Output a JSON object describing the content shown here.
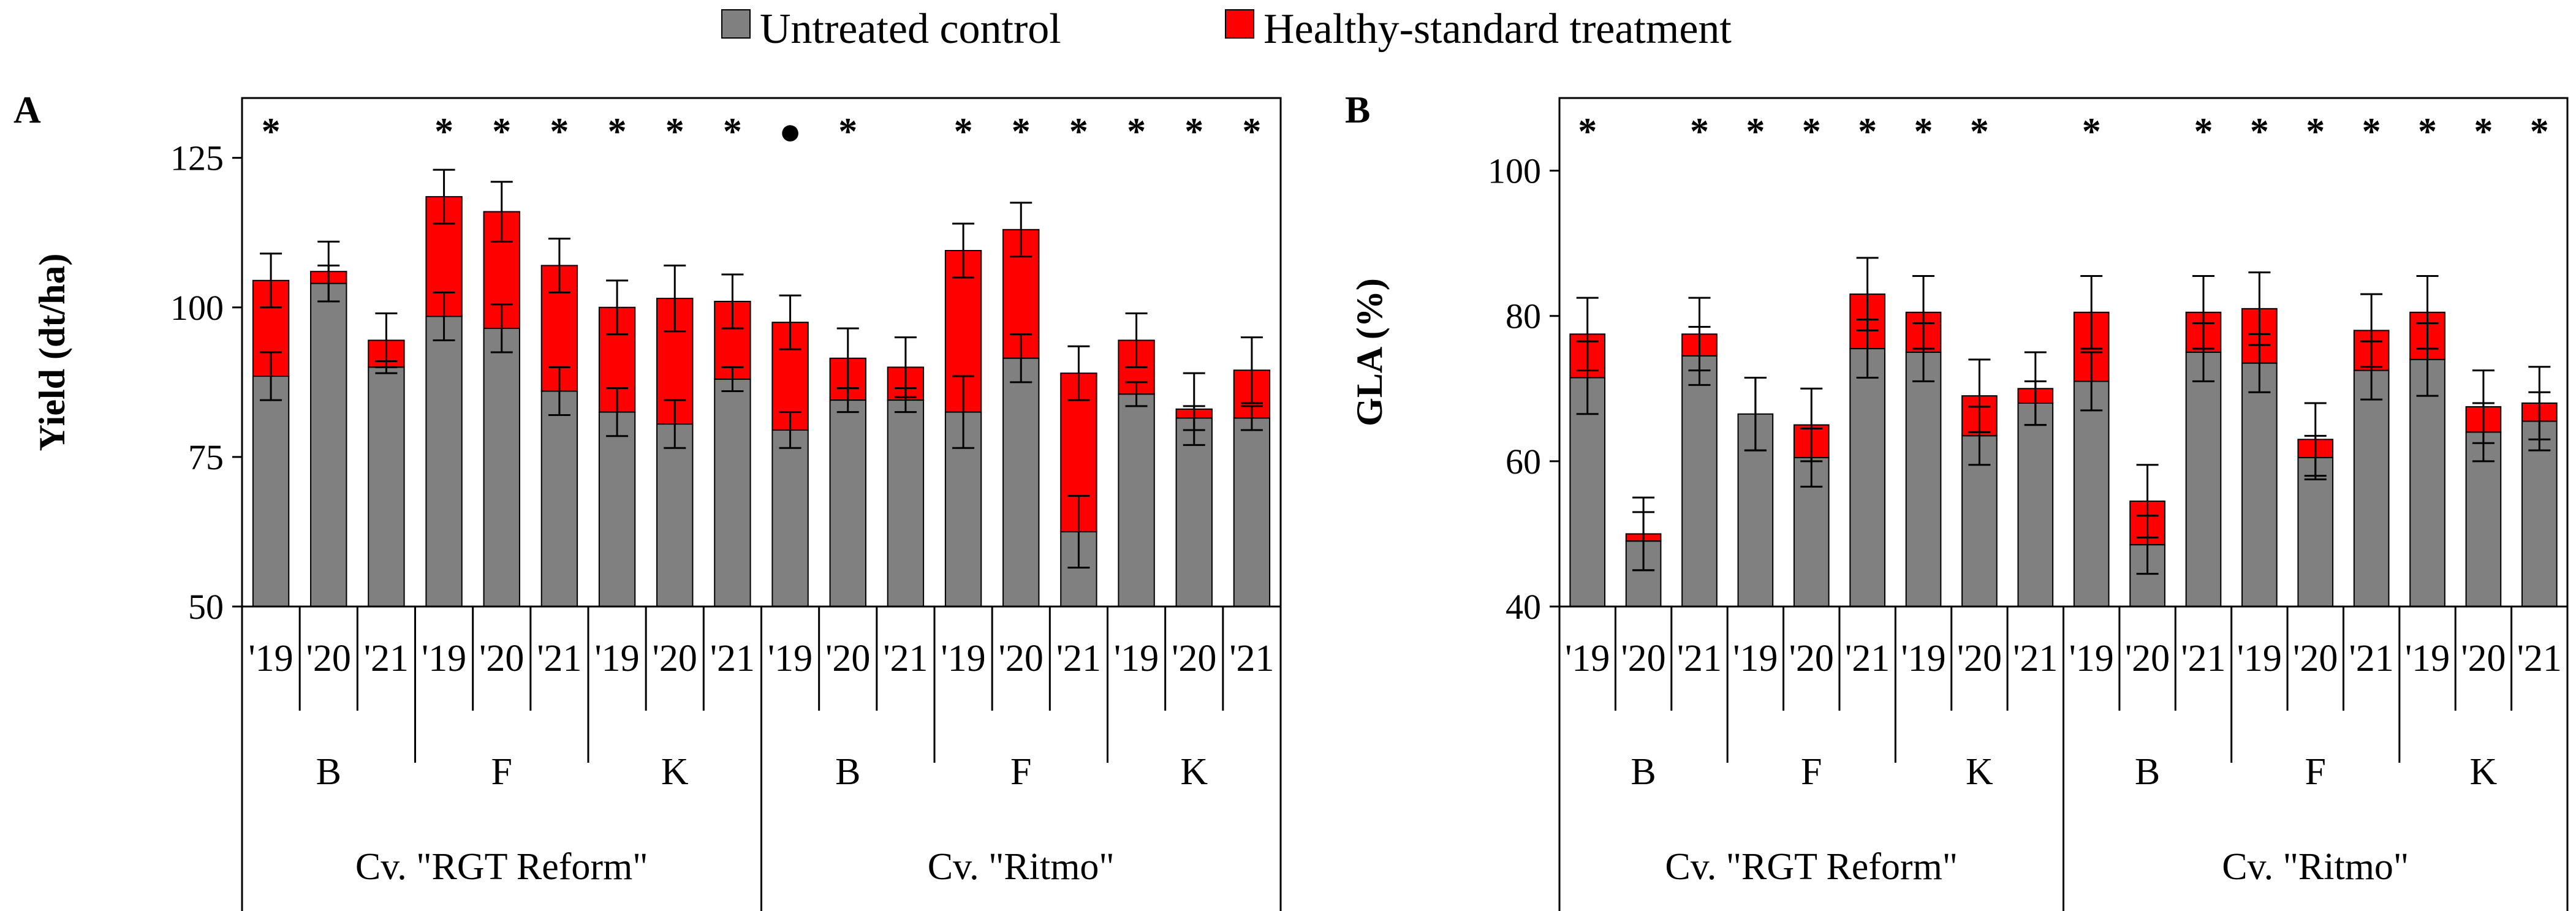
{
  "legend": {
    "items": [
      {
        "label": "Untreated control",
        "color": "#808080"
      },
      {
        "label": "Healthy-standard treatment",
        "color": "#ff0000"
      }
    ]
  },
  "chart_data": [
    {
      "type": "bar",
      "panel": "A",
      "ylabel": "Yield (dt/ha)",
      "ylim": [
        50,
        135
      ],
      "yticks": [
        "50",
        "75",
        "100",
        "125"
      ],
      "categories": [
        "'19",
        "'20",
        "'21",
        "'19",
        "'20",
        "'21",
        "'19",
        "'20",
        "'21",
        "'19",
        "'20",
        "'21",
        "'19",
        "'20",
        "'21",
        "'19",
        "'20",
        "'21"
      ],
      "locations": [
        "B",
        "F",
        "K",
        "B",
        "F",
        "K"
      ],
      "cultivars": [
        "Cv. \"RGT Reform\"",
        "Cv. \"Ritmo\""
      ],
      "significance": [
        "*",
        "",
        "",
        "*",
        "*",
        "*",
        "*",
        "*",
        "*",
        "●",
        "*",
        "",
        "*",
        "*",
        "*",
        "*",
        "*",
        "*"
      ],
      "series": [
        {
          "name": "Untreated control",
          "values": [
            88.5,
            104.0,
            90.0,
            98.5,
            96.5,
            86.0,
            82.5,
            80.5,
            88.0,
            79.5,
            84.5,
            84.5,
            82.5,
            91.5,
            62.5,
            85.5,
            81.5,
            81.5
          ],
          "errors": [
            4,
            3,
            1,
            4,
            4,
            4,
            4,
            4,
            2,
            3,
            2,
            2,
            6,
            4,
            6,
            2,
            2,
            2
          ]
        },
        {
          "name": "Healthy-standard treatment",
          "values": [
            104.5,
            106.0,
            94.5,
            118.5,
            116.0,
            107.0,
            100.0,
            101.5,
            101.0,
            97.5,
            91.5,
            90.0,
            109.5,
            113.0,
            89.0,
            94.5,
            83.0,
            89.5
          ],
          "errors": [
            4.5,
            5,
            4.5,
            4.5,
            5,
            4.5,
            4.5,
            5.5,
            4.5,
            4.5,
            5,
            5,
            4.5,
            4.5,
            4.5,
            4.5,
            6,
            5.5
          ]
        }
      ]
    },
    {
      "type": "bar",
      "panel": "B",
      "ylabel": "GLA (%)",
      "ylim": [
        40,
        110
      ],
      "yticks": [
        "40",
        "60",
        "80",
        "100"
      ],
      "categories": [
        "'19",
        "'20",
        "'21",
        "'19",
        "'20",
        "'21",
        "'19",
        "'20",
        "'21",
        "'19",
        "'20",
        "'21",
        "'19",
        "'20",
        "'21",
        "'19",
        "'20",
        "'21"
      ],
      "locations": [
        "B",
        "F",
        "K",
        "B",
        "F",
        "K"
      ],
      "cultivars": [
        "Cv. \"RGT Reform\"",
        "Cv. \"Ritmo\""
      ],
      "significance": [
        "*",
        "",
        "*",
        "*",
        "*",
        "*",
        "*",
        "*",
        "",
        "*",
        "",
        "*",
        "*",
        "*",
        "*",
        "*",
        "*",
        "*"
      ],
      "series": [
        {
          "name": "Untreated control",
          "values": [
            71.5,
            49.0,
            74.5,
            66.5,
            60.5,
            75.5,
            75.0,
            63.5,
            68.0,
            71.0,
            48.5,
            75.0,
            73.5,
            60.5,
            72.5,
            74.0,
            64.0,
            65.5
          ],
          "errors": [
            5,
            4,
            4,
            5,
            4,
            4,
            4,
            4,
            3,
            4,
            4,
            4,
            4,
            3,
            4,
            5,
            4,
            4
          ]
        },
        {
          "name": "Healthy-standard treatment",
          "values": [
            77.5,
            50.0,
            77.5,
            66.5,
            65.0,
            83.0,
            80.5,
            69.0,
            70.0,
            80.5,
            54.5,
            80.5,
            81.0,
            63.0,
            78.0,
            80.5,
            67.5,
            68.0
          ],
          "errors": [
            5,
            5,
            5,
            5,
            5,
            5,
            5,
            5,
            5,
            5,
            5,
            5,
            5,
            5,
            5,
            5,
            5,
            5
          ]
        }
      ]
    }
  ]
}
